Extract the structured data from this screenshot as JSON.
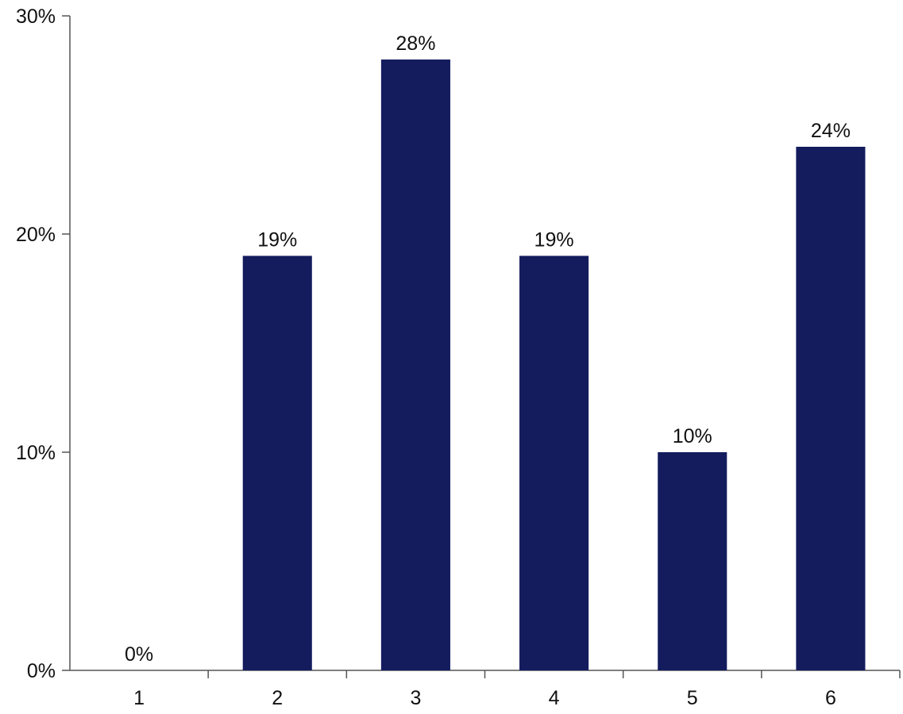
{
  "chart_data": {
    "type": "bar",
    "categories": [
      "1",
      "2",
      "3",
      "4",
      "5",
      "6"
    ],
    "values": [
      0,
      19,
      28,
      19,
      10,
      24
    ],
    "value_labels": [
      "0%",
      "19%",
      "28%",
      "19%",
      "10%",
      "24%"
    ],
    "ylim": [
      0,
      30
    ],
    "yticks": [
      0,
      10,
      20,
      30
    ],
    "ytick_labels": [
      "0%",
      "10%",
      "20%",
      "30%"
    ],
    "title": "",
    "xlabel": "",
    "ylabel": "",
    "grid": false,
    "bar_color": "#141c5e"
  }
}
